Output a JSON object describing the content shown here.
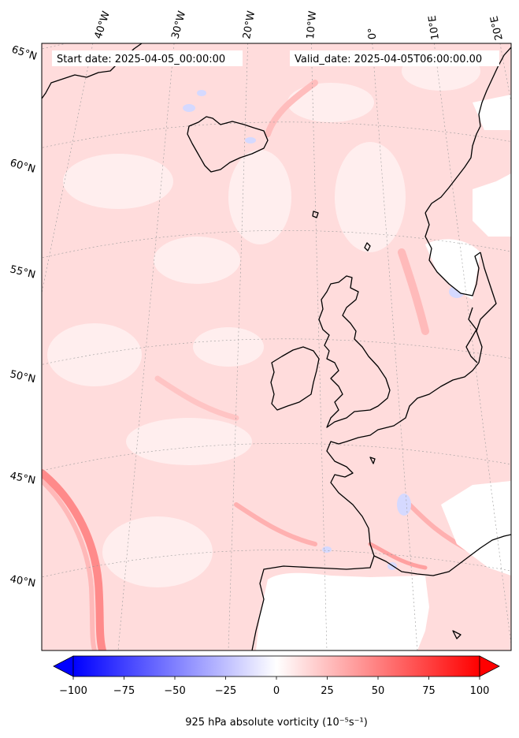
{
  "header": {
    "start_date": "Start date: 2025-04-05_00:00:00",
    "valid_date": "Valid_date: 2025-04-05T06:00:00.00"
  },
  "map": {
    "projection": "conic",
    "lon_labels": [
      "40°W",
      "30°W",
      "20°W",
      "10°W",
      "0°",
      "10°E",
      "20°E"
    ],
    "lat_labels": [
      "65°N",
      "60°N",
      "55°N",
      "50°N",
      "45°N",
      "40°N"
    ],
    "gridlines": true,
    "field": "925 hPa absolute vorticity",
    "colors": {
      "land_masked": "#ffffff",
      "background_field": "#ffd9d9",
      "strong_positive": "#ff7b7b",
      "negative": "#d8dcff",
      "coastline": "#000000"
    }
  },
  "colorbar": {
    "label": "925 hPa absolute vorticity (10⁻⁵s⁻¹)",
    "min": -100,
    "max": 100,
    "ticks": [
      "−100",
      "−75",
      "−50",
      "−25",
      "0",
      "25",
      "50",
      "75",
      "100"
    ],
    "tick_values": [
      -100,
      -75,
      -50,
      -25,
      0,
      25,
      50,
      75,
      100
    ],
    "colormap": "bwr",
    "extend": "both",
    "low_color": "#0000ff",
    "mid_color": "#ffffff",
    "high_color": "#ff0000"
  }
}
